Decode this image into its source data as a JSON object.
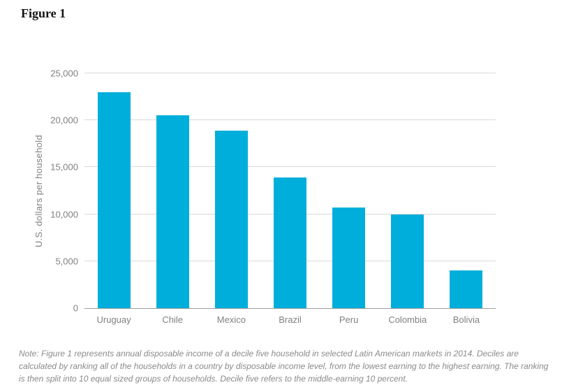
{
  "title": "Figure 1",
  "note": "Note:  Figure 1 represents annual disposable income of a decile five household in selected Latin American markets in 2014. Deciles are calculated by ranking all of the households in a country by disposable income level, from the lowest earning to the highest earning. The ranking is then split into 10 equal sized groups of households. Decile five refers to the middle-earning 10 percent.",
  "chart_data": {
    "type": "bar",
    "title": "Figure 1",
    "categories": [
      "Uruguay",
      "Chile",
      "Mexico",
      "Brazil",
      "Peru",
      "Colombia",
      "Bolivia"
    ],
    "values": [
      23000,
      20500,
      18900,
      13900,
      10700,
      10000,
      4000
    ],
    "xlabel": "",
    "ylabel": "U.S. dollars per household",
    "ylim": [
      0,
      25000
    ],
    "yticks": [
      {
        "value": 0,
        "label": "0"
      },
      {
        "value": 5000,
        "label": "5,000"
      },
      {
        "value": 10000,
        "label": "10,000"
      },
      {
        "value": 15000,
        "label": "15,000"
      },
      {
        "value": 20000,
        "label": "20,000"
      },
      {
        "value": 25000,
        "label": "25,000"
      }
    ],
    "bar_color": "#00AEDB",
    "gridline_color": "#d9d9d9",
    "axis_line_color": "#9e9e9e",
    "text_color": "#808080",
    "grid": true,
    "legend_position": "none"
  }
}
